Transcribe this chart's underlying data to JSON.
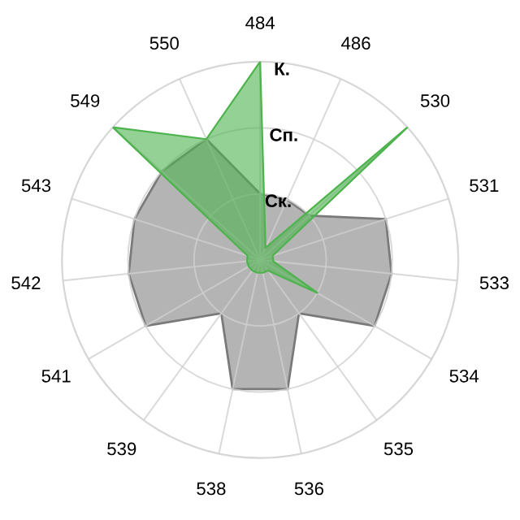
{
  "chart_data": {
    "type": "radar",
    "categories": [
      "484",
      "486",
      "530",
      "531",
      "533",
      "534",
      "535",
      "536",
      "538",
      "539",
      "541",
      "542",
      "543",
      "549",
      "550"
    ],
    "ylim": [
      0,
      3
    ],
    "yticks": [
      {
        "value": 1,
        "label": "Ск."
      },
      {
        "value": 2,
        "label": "Сп."
      },
      {
        "value": 3,
        "label": "К."
      }
    ],
    "grid": true,
    "series": [
      {
        "color": "#b4b4b4",
        "values": [
          1,
          1,
          1,
          2,
          2,
          2,
          1,
          2,
          2,
          1,
          2,
          2,
          2,
          2,
          2
        ]
      },
      {
        "color": "#4db34d",
        "values": [
          3,
          0.2,
          3,
          0.2,
          0.2,
          1,
          0.2,
          0.2,
          0.2,
          0.2,
          0.2,
          0.2,
          0.2,
          3,
          2
        ]
      }
    ]
  }
}
